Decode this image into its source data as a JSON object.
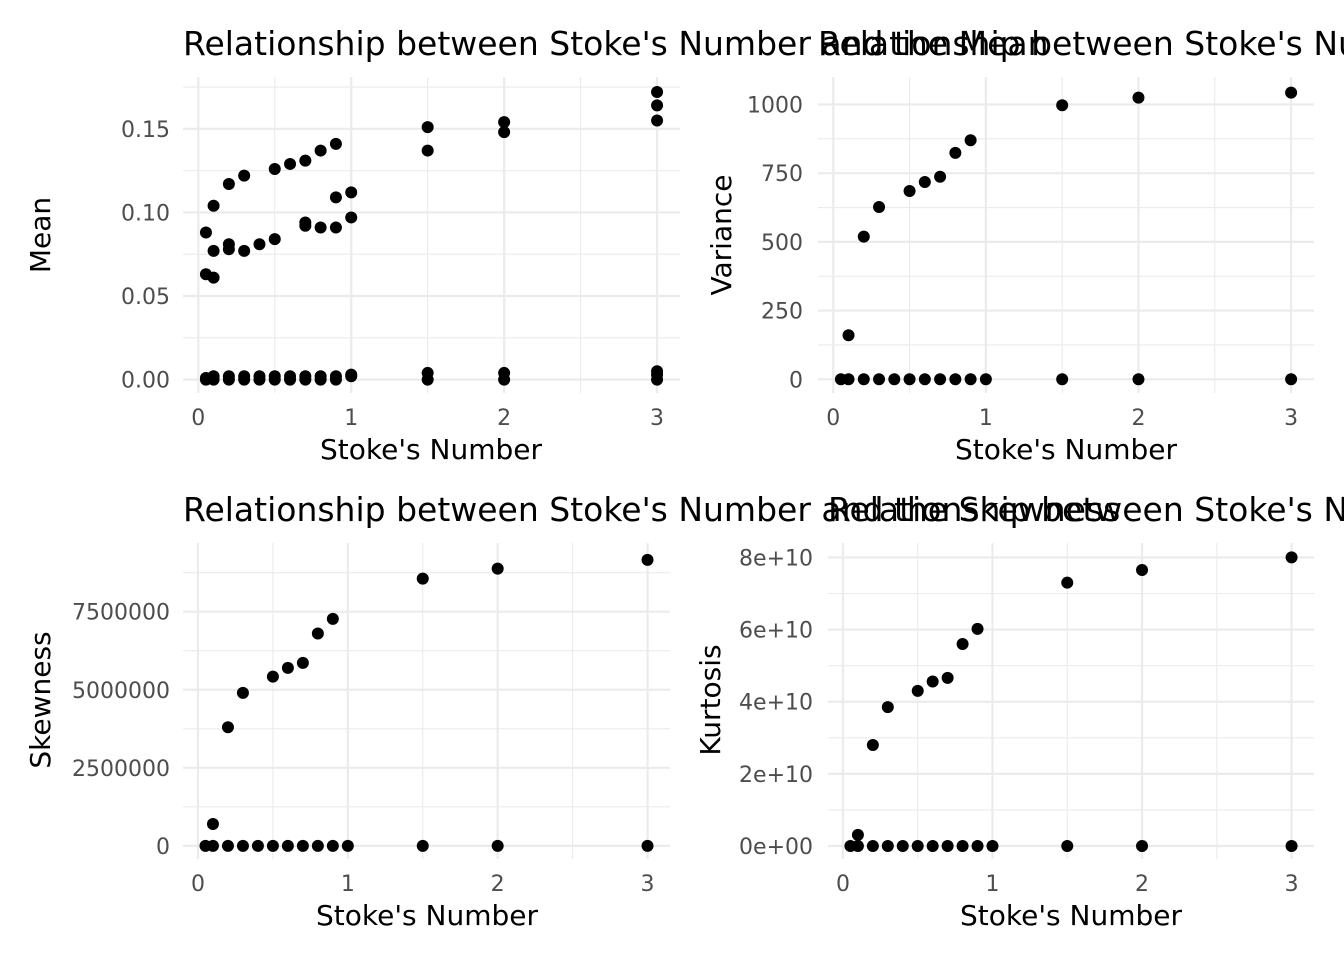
{
  "chart_data": [
    {
      "type": "scatter",
      "title": "Relationship between Stoke's Number and the Mean",
      "xlabel": "Stoke's Number",
      "ylabel": "Mean",
      "xlim": [
        -0.1,
        3.15
      ],
      "ylim": [
        -0.008,
        0.181
      ],
      "xticks": [
        0,
        1,
        2,
        3
      ],
      "xtick_labels": [
        "0",
        "1",
        "2",
        "3"
      ],
      "xminor": [
        0.5,
        1.5,
        2.5
      ],
      "yticks": [
        0,
        0.05,
        0.1,
        0.15
      ],
      "ytick_labels": [
        "0.00",
        "0.05",
        "0.10",
        "0.15"
      ],
      "yminor": [
        0.025,
        0.075,
        0.125,
        0.175
      ],
      "grid": true,
      "points": [
        [
          0.05,
          0.088
        ],
        [
          0.05,
          0.063
        ],
        [
          0.05,
          0.001
        ],
        [
          0.05,
          0.0
        ],
        [
          0.1,
          0.104
        ],
        [
          0.1,
          0.077
        ],
        [
          0.1,
          0.061
        ],
        [
          0.1,
          0.002
        ],
        [
          0.1,
          0.0
        ],
        [
          0.2,
          0.117
        ],
        [
          0.2,
          0.081
        ],
        [
          0.2,
          0.078
        ],
        [
          0.2,
          0.002
        ],
        [
          0.2,
          0.0
        ],
        [
          0.3,
          0.122
        ],
        [
          0.3,
          0.077
        ],
        [
          0.3,
          0.002
        ],
        [
          0.3,
          0.0
        ],
        [
          0.4,
          0.081
        ],
        [
          0.4,
          0.002
        ],
        [
          0.4,
          0.0
        ],
        [
          0.5,
          0.126
        ],
        [
          0.5,
          0.084
        ],
        [
          0.5,
          0.002
        ],
        [
          0.5,
          0.0
        ],
        [
          0.6,
          0.129
        ],
        [
          0.6,
          0.002
        ],
        [
          0.6,
          0.0
        ],
        [
          0.7,
          0.131
        ],
        [
          0.7,
          0.094
        ],
        [
          0.7,
          0.092
        ],
        [
          0.7,
          0.002
        ],
        [
          0.7,
          0.0
        ],
        [
          0.8,
          0.137
        ],
        [
          0.8,
          0.091
        ],
        [
          0.8,
          0.002
        ],
        [
          0.8,
          0.0
        ],
        [
          0.9,
          0.141
        ],
        [
          0.9,
          0.109
        ],
        [
          0.9,
          0.091
        ],
        [
          0.9,
          0.002
        ],
        [
          0.9,
          0.0
        ],
        [
          1.0,
          0.112
        ],
        [
          1.0,
          0.097
        ],
        [
          1.0,
          0.003
        ],
        [
          1.0,
          0.002
        ],
        [
          1.5,
          0.151
        ],
        [
          1.5,
          0.137
        ],
        [
          1.5,
          0.004
        ],
        [
          1.5,
          0.0
        ],
        [
          2.0,
          0.154
        ],
        [
          2.0,
          0.148
        ],
        [
          2.0,
          0.004
        ],
        [
          2.0,
          0.0
        ],
        [
          3.0,
          0.172
        ],
        [
          3.0,
          0.164
        ],
        [
          3.0,
          0.155
        ],
        [
          3.0,
          0.005
        ],
        [
          3.0,
          0.003
        ],
        [
          3.0,
          0.0
        ]
      ]
    },
    {
      "type": "scatter",
      "title": "Relationship between Stoke's Number and the Variance",
      "xlabel": "Stoke's Number",
      "ylabel": "Variance",
      "xlim": [
        -0.1,
        3.15
      ],
      "ylim": [
        -50,
        1100
      ],
      "xticks": [
        0,
        1,
        2,
        3
      ],
      "xtick_labels": [
        "0",
        "1",
        "2",
        "3"
      ],
      "xminor": [
        0.5,
        1.5,
        2.5
      ],
      "yticks": [
        0,
        250,
        500,
        750,
        1000
      ],
      "ytick_labels": [
        "0",
        "250",
        "500",
        "750",
        "1000"
      ],
      "yminor": [
        125,
        375,
        625,
        875
      ],
      "grid": true,
      "points": [
        [
          0.05,
          0
        ],
        [
          0.1,
          160
        ],
        [
          0.1,
          0
        ],
        [
          0.2,
          519
        ],
        [
          0.2,
          0
        ],
        [
          0.3,
          627
        ],
        [
          0.3,
          0
        ],
        [
          0.4,
          0
        ],
        [
          0.5,
          685
        ],
        [
          0.5,
          0
        ],
        [
          0.6,
          718
        ],
        [
          0.6,
          0
        ],
        [
          0.7,
          737
        ],
        [
          0.7,
          0
        ],
        [
          0.8,
          824
        ],
        [
          0.8,
          0
        ],
        [
          0.9,
          870
        ],
        [
          0.9,
          0
        ],
        [
          1.0,
          0
        ],
        [
          1.5,
          997
        ],
        [
          1.5,
          0
        ],
        [
          2.0,
          1025
        ],
        [
          2.0,
          0
        ],
        [
          3.0,
          1043
        ],
        [
          3.0,
          0
        ]
      ]
    },
    {
      "type": "scatter",
      "title": "Relationship between Stoke's Number and the Skewness",
      "xlabel": "Stoke's Number",
      "ylabel": "Skewness",
      "xlim": [
        -0.1,
        3.15
      ],
      "ylim": [
        -420000,
        9700000
      ],
      "xticks": [
        0,
        1,
        2,
        3
      ],
      "xtick_labels": [
        "0",
        "1",
        "2",
        "3"
      ],
      "xminor": [
        0.5,
        1.5,
        2.5
      ],
      "yticks": [
        0,
        2500000,
        5000000,
        7500000
      ],
      "ytick_labels": [
        "0",
        "2500000",
        "5000000",
        "7500000"
      ],
      "yminor": [
        1250000,
        3750000,
        6250000,
        8750000
      ],
      "grid": true,
      "points": [
        [
          0.05,
          0
        ],
        [
          0.1,
          700000
        ],
        [
          0.1,
          0
        ],
        [
          0.2,
          3800000
        ],
        [
          0.2,
          0
        ],
        [
          0.3,
          4900000
        ],
        [
          0.3,
          0
        ],
        [
          0.4,
          0
        ],
        [
          0.5,
          5420000
        ],
        [
          0.5,
          0
        ],
        [
          0.6,
          5700000
        ],
        [
          0.6,
          0
        ],
        [
          0.7,
          5860000
        ],
        [
          0.7,
          0
        ],
        [
          0.8,
          6800000
        ],
        [
          0.8,
          0
        ],
        [
          0.9,
          7270000
        ],
        [
          0.9,
          0
        ],
        [
          1.0,
          0
        ],
        [
          1.5,
          8560000
        ],
        [
          1.5,
          0
        ],
        [
          2.0,
          8880000
        ],
        [
          2.0,
          0
        ],
        [
          3.0,
          9160000
        ],
        [
          3.0,
          0
        ]
      ]
    },
    {
      "type": "scatter",
      "title": "Relationship between Stoke's Number and the Kurtosis",
      "xlabel": "Stoke's Number",
      "ylabel": "Kurtosis",
      "xlim": [
        -0.1,
        3.15
      ],
      "ylim": [
        -3600000000,
        84000000000
      ],
      "xticks": [
        0,
        1,
        2,
        3
      ],
      "xtick_labels": [
        "0",
        "1",
        "2",
        "3"
      ],
      "xminor": [
        0.5,
        1.5,
        2.5
      ],
      "yticks": [
        0,
        20000000000,
        40000000000,
        60000000000,
        80000000000
      ],
      "ytick_labels": [
        "0e+00",
        "2e+10",
        "4e+10",
        "6e+10",
        "8e+10"
      ],
      "yminor": [
        10000000000,
        30000000000,
        50000000000,
        70000000000
      ],
      "grid": true,
      "points": [
        [
          0.05,
          0
        ],
        [
          0.1,
          3100000000
        ],
        [
          0.1,
          0
        ],
        [
          0.2,
          28000000000
        ],
        [
          0.2,
          0
        ],
        [
          0.3,
          38500000000
        ],
        [
          0.3,
          0
        ],
        [
          0.4,
          0
        ],
        [
          0.5,
          43000000000
        ],
        [
          0.5,
          0
        ],
        [
          0.6,
          45600000000
        ],
        [
          0.6,
          0
        ],
        [
          0.7,
          46600000000
        ],
        [
          0.7,
          0
        ],
        [
          0.8,
          56000000000
        ],
        [
          0.8,
          0
        ],
        [
          0.9,
          60200000000
        ],
        [
          0.9,
          0
        ],
        [
          1.0,
          0
        ],
        [
          1.5,
          73000000000
        ],
        [
          1.5,
          0
        ],
        [
          2.0,
          76500000000
        ],
        [
          2.0,
          0
        ],
        [
          3.0,
          80000000000
        ],
        [
          3.0,
          0
        ]
      ]
    }
  ]
}
